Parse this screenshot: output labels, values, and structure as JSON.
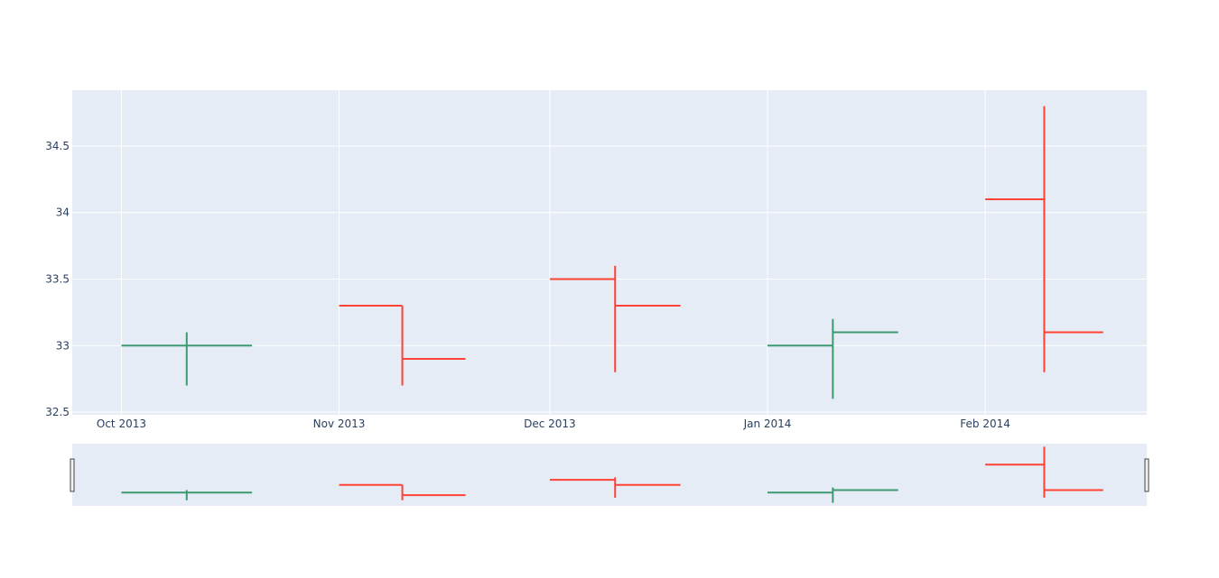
{
  "chart_data": {
    "type": "ohlc",
    "title": "",
    "xlabel": "",
    "ylabel": "",
    "x_axis_type": "date",
    "x_range": [
      "2013-09-24",
      "2014-02-24"
    ],
    "ylim": [
      32.48,
      34.92
    ],
    "y_ticks": [
      32.5,
      33,
      33.5,
      34,
      34.5
    ],
    "y_tick_labels": [
      "32.5",
      "33",
      "33.5",
      "34",
      "34.5"
    ],
    "x_ticks": [
      "2013-10-01",
      "2013-11-01",
      "2013-12-01",
      "2014-01-01",
      "2014-02-01"
    ],
    "x_tick_labels": [
      "Oct 2013",
      "Nov 2013",
      "Dec 2013",
      "Jan 2014",
      "Feb 2014"
    ],
    "grid": true,
    "legend": "none",
    "rangeslider": true,
    "colors": {
      "increasing": "#3d9970",
      "decreasing": "#ff4136",
      "plot_bg": "#e5ecf6",
      "grid": "#ffffff",
      "tick_text": "#2a3f5f"
    },
    "points": [
      {
        "date": "2013-10-01",
        "open": 33.0,
        "high": 33.1,
        "low": 32.7,
        "close": 33.0
      },
      {
        "date": "2013-11-01",
        "open": 33.3,
        "high": 33.3,
        "low": 32.7,
        "close": 32.9
      },
      {
        "date": "2013-12-01",
        "open": 33.5,
        "high": 33.6,
        "low": 32.8,
        "close": 33.3
      },
      {
        "date": "2014-01-01",
        "open": 33.0,
        "high": 33.2,
        "low": 32.6,
        "close": 33.1
      },
      {
        "date": "2014-02-01",
        "open": 34.1,
        "high": 34.8,
        "low": 32.8,
        "close": 33.1
      }
    ]
  }
}
